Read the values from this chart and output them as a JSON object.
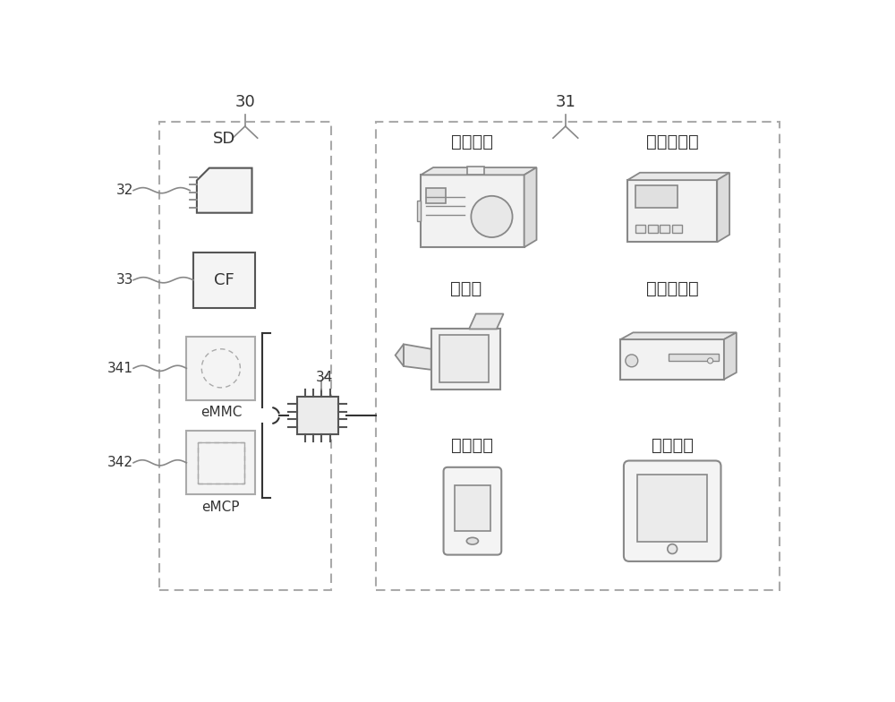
{
  "bg_color": "#ffffff",
  "label30": "30",
  "label31": "31",
  "label32": "32",
  "label33": "33",
  "label34": "34",
  "label341": "341",
  "label342": "342",
  "text_SD": "SD",
  "text_CF": "CF",
  "text_eMMC": "eMMC",
  "text_eMCP": "eMCP",
  "text_camera": "数码相机",
  "text_audio": "音频播放器",
  "text_video_cam": "摄影机",
  "text_video_player": "视频播放器",
  "text_comm": "通讯装置",
  "text_tablet": "平板电脑",
  "gray1": "#aaaaaa",
  "gray2": "#888888",
  "gray3": "#cccccc",
  "gray4": "#e8e8e8",
  "gray5": "#555555",
  "dark": "#333333"
}
